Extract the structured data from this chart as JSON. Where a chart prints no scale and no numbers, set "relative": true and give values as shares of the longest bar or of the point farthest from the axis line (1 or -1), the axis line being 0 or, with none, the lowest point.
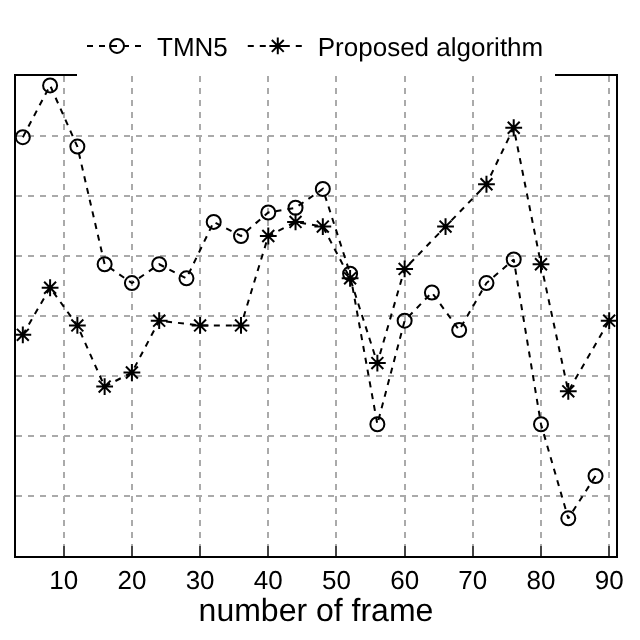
{
  "chart_data": {
    "type": "line",
    "xlabel": "number of frame",
    "relative": true,
    "xlim": [
      3,
      91
    ],
    "xticks": [
      10,
      20,
      30,
      40,
      50,
      60,
      70,
      80,
      90
    ],
    "grid": true,
    "legend": "top",
    "line_style": "dotted",
    "series": [
      {
        "name": "TMN5",
        "color": "#000000",
        "marker": "circle",
        "x": [
          4,
          8,
          12,
          16,
          20,
          24,
          28,
          32,
          36,
          40,
          44,
          48,
          52,
          56,
          60,
          64,
          68,
          72,
          76,
          80,
          84,
          88
        ],
        "values": [
          0.89,
          1.0,
          0.87,
          0.62,
          0.58,
          0.62,
          0.59,
          0.71,
          0.68,
          0.73,
          0.74,
          0.78,
          0.6,
          0.28,
          0.5,
          0.56,
          0.48,
          0.58,
          0.63,
          0.28,
          0.08,
          0.17
        ]
      },
      {
        "name": "Proposed algorithm",
        "color": "#000000",
        "marker": "cross",
        "x": [
          4,
          8,
          12,
          16,
          20,
          24,
          30,
          36,
          40,
          44,
          48,
          52,
          56,
          60,
          66,
          72,
          76,
          80,
          84,
          90
        ],
        "values": [
          0.47,
          0.57,
          0.49,
          0.36,
          0.39,
          0.5,
          0.49,
          0.49,
          0.68,
          0.71,
          0.7,
          0.59,
          0.41,
          0.61,
          0.7,
          0.79,
          0.91,
          0.62,
          0.35,
          0.5
        ]
      }
    ]
  }
}
